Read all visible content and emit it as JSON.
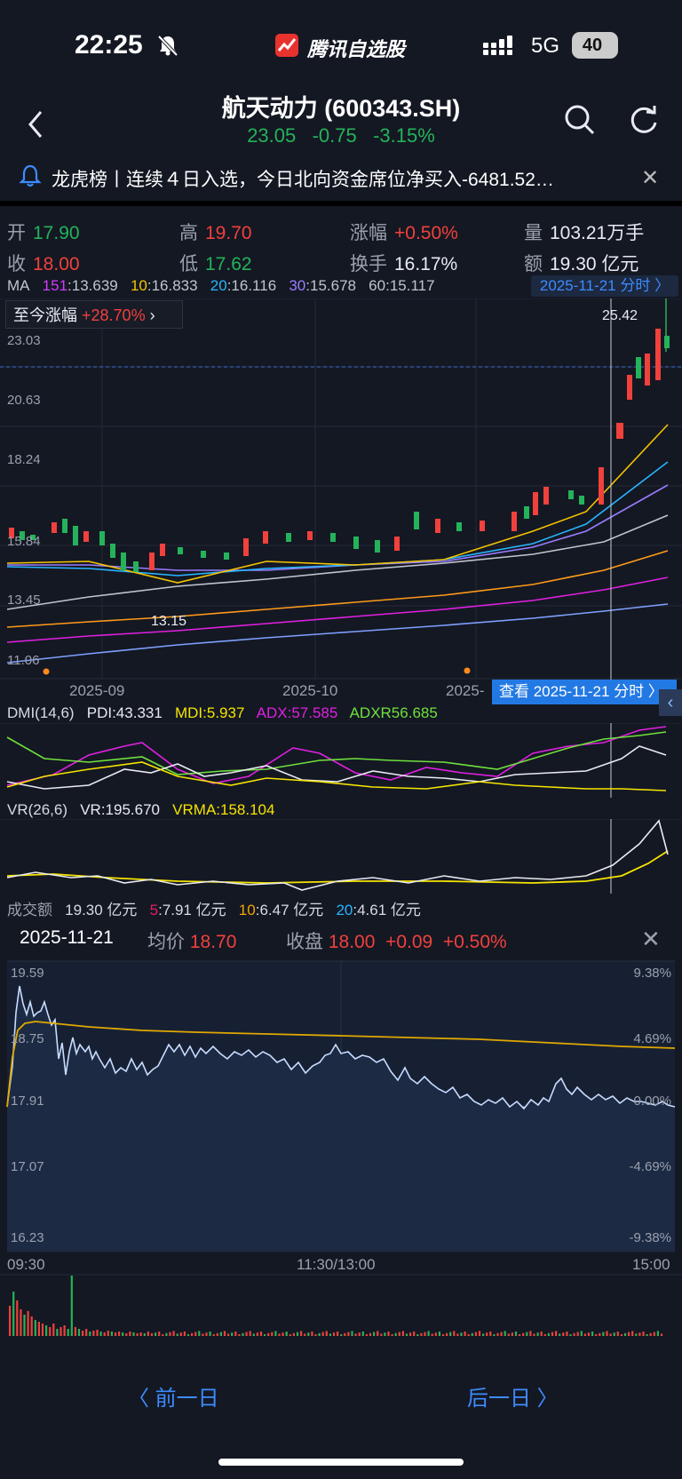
{
  "status_bar": {
    "time": "22:25",
    "network": "5G",
    "battery": "40"
  },
  "app": {
    "name": "腾讯自选股"
  },
  "header": {
    "title": "航天动力 (600343.SH)",
    "price": "23.05",
    "change": "-0.75",
    "change_pct": "-3.15%"
  },
  "notice": {
    "text": "龙虎榜丨连续４日入选，今日北向资金席位净买入-6481.52…"
  },
  "info": {
    "open_label": "开",
    "open": "17.90",
    "high_label": "高",
    "high": "19.70",
    "range_label": "涨幅",
    "range": "+0.50%",
    "volume_label": "量",
    "volume": "103.21万手",
    "close_label": "收",
    "close": "18.00",
    "low_label": "低",
    "low": "17.62",
    "turnover_label": "换手",
    "turnover": "16.17%",
    "amount_label": "额",
    "amount": "19.30 亿元"
  },
  "ma": {
    "label": "MA",
    "items": [
      {
        "key": "151",
        "value": ":13.639",
        "color": "#d23cff"
      },
      {
        "key": "10",
        "value": ":16.833",
        "color": "#f5c400"
      },
      {
        "key": "20",
        "value": ":16.116",
        "color": "#28b5ff"
      },
      {
        "key": "30",
        "value": ":15.678",
        "color": "#9a7cff"
      },
      {
        "key": "60",
        "value": ":15.117",
        "color": "#bfc4ce"
      }
    ],
    "date_button": "2025-11-21 分时 〉"
  },
  "kline": {
    "gain_label": "至今涨幅",
    "gain_value": "+28.70%",
    "y_labels": [
      "23.03",
      "20.63",
      "18.24",
      "15.84",
      "13.45",
      "11.06"
    ],
    "x_labels": [
      "2025-09",
      "2025-10",
      "2025-"
    ],
    "high_marker": "25.42",
    "low_marker": "13.15",
    "detail_button": "查看 2025-11-21 分时 〉"
  },
  "dmi": {
    "label": "DMI(14,6)",
    "pdi": "PDI:43.331",
    "mdi": "MDI:5.937",
    "adx": "ADX:57.585",
    "adxr": "ADXR56.685"
  },
  "vr": {
    "label": "VR(26,6)",
    "vr": "VR:195.670",
    "vrma": "VRMA:158.104"
  },
  "turnover_bar": {
    "label": "成交额",
    "value": "19.30 亿元",
    "ma5_key": "5",
    "ma5": ":7.91 亿元",
    "ma10_key": "10",
    "ma10": ":6.47 亿元",
    "ma20_key": "20",
    "ma20": ":4.61 亿元"
  },
  "intraday": {
    "date": "2025-11-21",
    "avg_label": "均价",
    "avg": "18.70",
    "close_label": "收盘",
    "close": "18.00",
    "close_change": "+0.09",
    "close_pct": "+0.50%",
    "y_left": [
      "19.59",
      "18.75",
      "17.91",
      "17.07",
      "16.23"
    ],
    "y_right": [
      "9.38%",
      "4.69%",
      "0.00%",
      "-4.69%",
      "-9.38%"
    ],
    "x_labels": [
      "09:30",
      "11:30/13:00",
      "15:00"
    ]
  },
  "nav": {
    "prev": "〈 前一日",
    "next": "后一日 〉"
  },
  "colors": {
    "up": "#f0413c",
    "down": "#24b35a",
    "accent": "#3d8bff",
    "bg": "#141823"
  }
}
